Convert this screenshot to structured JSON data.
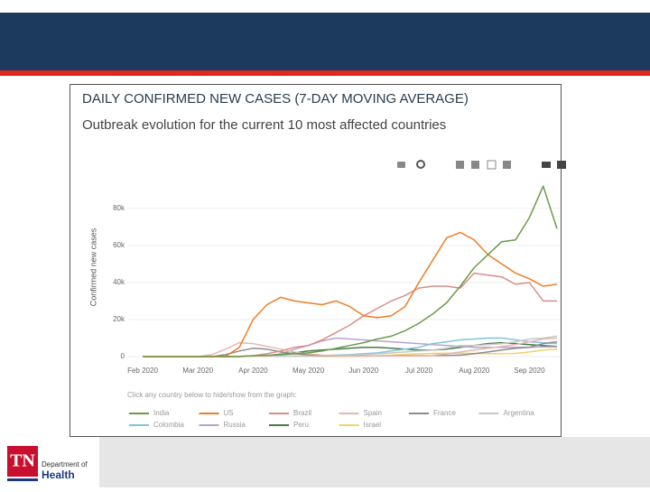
{
  "footer": {
    "logo": "TN",
    "department": "Department of",
    "division": "Health"
  },
  "chart_data": {
    "type": "line",
    "title": "DAILY CONFIRMED NEW CASES (7-DAY MOVING AVERAGE)",
    "subtitle": "Outbreak evolution for the current 10 most affected countries",
    "y_label": "Confirmed new cases",
    "legend_title": "Click any country below to hide/show from the graph:",
    "grid": true,
    "categories": [
      "Feb 2020",
      null,
      null,
      null,
      "Mar 2020",
      null,
      null,
      null,
      "Apr 2020",
      null,
      null,
      null,
      "May 2020",
      null,
      null,
      null,
      "Jun 2020",
      null,
      null,
      null,
      "Jul 2020",
      null,
      null,
      null,
      "Aug 2020",
      null,
      null,
      null,
      "Sep 2020",
      null,
      null
    ],
    "ylim": [
      0,
      95000
    ],
    "yticks": [
      0,
      {
        "value": 20000,
        "label": "20k"
      },
      {
        "value": 40000,
        "label": "40k"
      },
      {
        "value": 60000,
        "label": "60k"
      },
      {
        "value": 80000,
        "label": "80k"
      }
    ],
    "series": [
      {
        "name": "India",
        "color": "#6b9b49",
        "values": [
          0,
          0,
          0,
          0,
          0,
          0,
          0,
          0,
          500,
          700,
          1000,
          1500,
          2000,
          3000,
          4500,
          6000,
          7500,
          9500,
          11000,
          14000,
          18000,
          23000,
          29000,
          38000,
          48000,
          55000,
          62000,
          63000,
          75000,
          92000,
          69000
        ]
      },
      {
        "name": "US",
        "color": "#ee7d28",
        "values": [
          0,
          0,
          0,
          0,
          0,
          0,
          100,
          5000,
          20000,
          28000,
          32000,
          30000,
          29000,
          28000,
          30000,
          27000,
          22000,
          21000,
          22000,
          27000,
          40000,
          52000,
          64000,
          67000,
          63000,
          55000,
          50000,
          45000,
          42000,
          38000,
          39000
        ]
      },
      {
        "name": "Brazil",
        "color": "#d98e87",
        "values": [
          0,
          0,
          0,
          0,
          0,
          0,
          0,
          100,
          500,
          1500,
          3000,
          5000,
          6000,
          9000,
          13000,
          17000,
          22000,
          26000,
          30000,
          33000,
          37000,
          38000,
          38000,
          37000,
          45000,
          44000,
          43000,
          39000,
          40000,
          30000,
          30000
        ]
      },
      {
        "name": "Spain",
        "color": "#e8b7b1",
        "values": [
          0,
          0,
          0,
          0,
          0,
          1000,
          4000,
          7500,
          7000,
          5500,
          4000,
          2500,
          1500,
          800,
          400,
          300,
          300,
          300,
          300,
          300,
          400,
          700,
          1500,
          2500,
          3500,
          4500,
          5500,
          6500,
          8000,
          9500,
          10000
        ]
      },
      {
        "name": "France",
        "color": "#8c8c8c",
        "values": [
          0,
          0,
          0,
          0,
          0,
          0,
          1000,
          3000,
          4500,
          4000,
          2500,
          1500,
          1000,
          600,
          400,
          400,
          400,
          400,
          400,
          500,
          500,
          600,
          700,
          800,
          1500,
          2500,
          3500,
          4500,
          5000,
          7000,
          8000
        ]
      },
      {
        "name": "Argentina",
        "color": "#c8c8c8",
        "values": [
          0,
          0,
          0,
          0,
          0,
          0,
          0,
          100,
          100,
          100,
          100,
          150,
          200,
          300,
          500,
          700,
          1000,
          1500,
          2000,
          2500,
          3000,
          3500,
          4500,
          6000,
          6000,
          6500,
          7000,
          8000,
          9500,
          10000,
          11000
        ]
      },
      {
        "name": "Colombia",
        "color": "#7fc5d8",
        "values": [
          0,
          0,
          0,
          0,
          0,
          0,
          0,
          100,
          100,
          100,
          200,
          300,
          400,
          500,
          800,
          1000,
          1500,
          2000,
          3000,
          4000,
          5000,
          7000,
          8000,
          9000,
          9500,
          10000,
          10000,
          9000,
          8000,
          7500,
          7000
        ]
      },
      {
        "name": "Russia",
        "color": "#b6a4cc",
        "values": [
          0,
          0,
          0,
          0,
          0,
          0,
          0,
          100,
          200,
          500,
          1500,
          4000,
          6000,
          8500,
          10000,
          9500,
          9000,
          8500,
          8000,
          7500,
          7000,
          6500,
          6000,
          5500,
          5000,
          5000,
          5000,
          5000,
          5000,
          5200,
          5300
        ]
      },
      {
        "name": "Peru",
        "color": "#4a7a4a",
        "values": [
          0,
          0,
          0,
          0,
          0,
          0,
          0,
          50,
          200,
          500,
          1000,
          2000,
          3000,
          3500,
          4000,
          4500,
          5000,
          5000,
          4500,
          4000,
          3500,
          3500,
          4000,
          5000,
          6000,
          7000,
          7500,
          7000,
          6500,
          6000,
          5500
        ]
      },
      {
        "name": "Israel",
        "color": "#f0d36b",
        "values": [
          0,
          0,
          0,
          0,
          0,
          0,
          0,
          200,
          400,
          500,
          400,
          200,
          100,
          50,
          50,
          100,
          200,
          500,
          800,
          1200,
          1500,
          1700,
          1800,
          1800,
          1700,
          1600,
          1600,
          1700,
          2500,
          3500,
          4000
        ]
      }
    ]
  }
}
